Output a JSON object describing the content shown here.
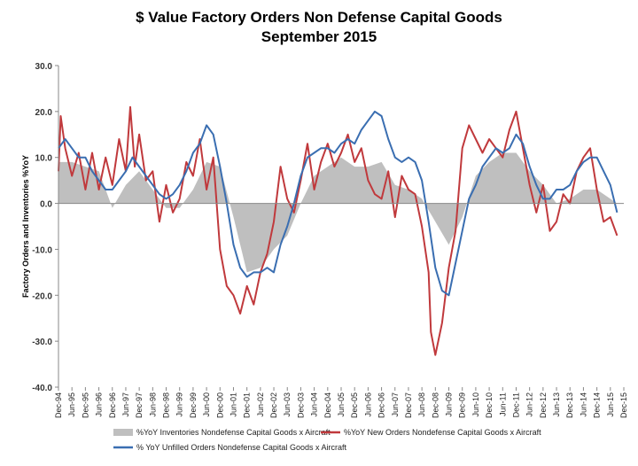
{
  "chart_data": {
    "type": "line",
    "title": "$ Value Factory Orders Non Defense Capital Goods",
    "subtitle": "September 2015",
    "xlabel": "",
    "ylabel": "Factory Orders and Inventories %YoY",
    "ylim": [
      -40,
      30
    ],
    "yticks": [
      "30.0",
      "20.0",
      "10.0",
      "0.0",
      "-10.0",
      "-20.0",
      "-30.0",
      "-40.0"
    ],
    "xrange": [
      "1994-12",
      "2015-12"
    ],
    "xtick_labels": [
      "Dec-94",
      "Jun-95",
      "Dec-95",
      "Jun-96",
      "Dec-96",
      "Jun-97",
      "Dec-97",
      "Jun-98",
      "Dec-98",
      "Jun-99",
      "Dec-99",
      "Jun-00",
      "Dec-00",
      "Jun-01",
      "Dec-01",
      "Jun-02",
      "Dec-02",
      "Jun-03",
      "Dec-03",
      "Jun-04",
      "Dec-04",
      "Jun-05",
      "Dec-05",
      "Jun-06",
      "Dec-06",
      "Jun-07",
      "Dec-07",
      "Jun-08",
      "Dec-08",
      "Jun-09",
      "Dec-09",
      "Jun-10",
      "Dec-10",
      "Jun-11",
      "Dec-11",
      "Jun-12",
      "Dec-12",
      "Jun-13",
      "Dec-13",
      "Jun-14",
      "Dec-14",
      "Jun-15",
      "Dec-15"
    ],
    "grid": false,
    "legend_position": "bottom",
    "series": [
      {
        "name": "%YoY Inventories Nondefense Capital Goods x Aircraft",
        "style": "area",
        "color": "#bfbfbf",
        "points": [
          [
            "1994-12",
            9
          ],
          [
            "1995-06",
            9
          ],
          [
            "1995-12",
            8
          ],
          [
            "1996-06",
            7
          ],
          [
            "1996-12",
            -1
          ],
          [
            "1997-06",
            4
          ],
          [
            "1997-12",
            7
          ],
          [
            "1998-06",
            3
          ],
          [
            "1998-12",
            -1
          ],
          [
            "1999-06",
            -1
          ],
          [
            "1999-12",
            3
          ],
          [
            "2000-06",
            9
          ],
          [
            "2000-12",
            8
          ],
          [
            "2001-06",
            -3
          ],
          [
            "2001-12",
            -15
          ],
          [
            "2002-06",
            -14
          ],
          [
            "2002-12",
            -10
          ],
          [
            "2003-06",
            -7
          ],
          [
            "2003-12",
            0
          ],
          [
            "2004-06",
            6
          ],
          [
            "2004-12",
            8
          ],
          [
            "2005-06",
            10
          ],
          [
            "2005-12",
            8
          ],
          [
            "2006-06",
            8
          ],
          [
            "2006-12",
            9
          ],
          [
            "2007-06",
            4
          ],
          [
            "2007-12",
            3
          ],
          [
            "2008-06",
            1
          ],
          [
            "2008-12",
            -4
          ],
          [
            "2009-06",
            -9
          ],
          [
            "2009-12",
            -3
          ],
          [
            "2010-06",
            6
          ],
          [
            "2010-12",
            9
          ],
          [
            "2011-06",
            11
          ],
          [
            "2011-12",
            11
          ],
          [
            "2012-06",
            7
          ],
          [
            "2012-12",
            4
          ],
          [
            "2013-06",
            0
          ],
          [
            "2013-12",
            1
          ],
          [
            "2014-06",
            3
          ],
          [
            "2014-12",
            3
          ],
          [
            "2015-06",
            1
          ],
          [
            "2015-09",
            0
          ]
        ]
      },
      {
        "name": "%YoY New Orders Nondefense Capital Goods x Aircraft",
        "style": "line",
        "color": "#c0393c",
        "points": [
          [
            "1994-12",
            7
          ],
          [
            "1995-01",
            19
          ],
          [
            "1995-03",
            12
          ],
          [
            "1995-06",
            6
          ],
          [
            "1995-09",
            11
          ],
          [
            "1995-12",
            3
          ],
          [
            "1996-03",
            11
          ],
          [
            "1996-06",
            3
          ],
          [
            "1996-09",
            10
          ],
          [
            "1996-12",
            4
          ],
          [
            "1997-03",
            14
          ],
          [
            "1997-06",
            7
          ],
          [
            "1997-08",
            21
          ],
          [
            "1997-10",
            8
          ],
          [
            "1997-12",
            15
          ],
          [
            "1998-03",
            5
          ],
          [
            "1998-06",
            7
          ],
          [
            "1998-09",
            -4
          ],
          [
            "1998-12",
            4
          ],
          [
            "1999-03",
            -2
          ],
          [
            "1999-06",
            1
          ],
          [
            "1999-09",
            9
          ],
          [
            "1999-12",
            6
          ],
          [
            "2000-03",
            14
          ],
          [
            "2000-06",
            3
          ],
          [
            "2000-09",
            10
          ],
          [
            "2000-12",
            -10
          ],
          [
            "2001-03",
            -18
          ],
          [
            "2001-06",
            -20
          ],
          [
            "2001-09",
            -24
          ],
          [
            "2001-12",
            -18
          ],
          [
            "2002-03",
            -22
          ],
          [
            "2002-06",
            -15
          ],
          [
            "2002-09",
            -11
          ],
          [
            "2002-12",
            -4
          ],
          [
            "2003-03",
            8
          ],
          [
            "2003-06",
            1
          ],
          [
            "2003-09",
            -2
          ],
          [
            "2003-12",
            5
          ],
          [
            "2004-03",
            13
          ],
          [
            "2004-06",
            3
          ],
          [
            "2004-09",
            9
          ],
          [
            "2004-12",
            13
          ],
          [
            "2005-03",
            8
          ],
          [
            "2005-06",
            11
          ],
          [
            "2005-09",
            15
          ],
          [
            "2005-12",
            9
          ],
          [
            "2006-03",
            12
          ],
          [
            "2006-06",
            5
          ],
          [
            "2006-09",
            2
          ],
          [
            "2006-12",
            1
          ],
          [
            "2007-03",
            7
          ],
          [
            "2007-06",
            -3
          ],
          [
            "2007-09",
            6
          ],
          [
            "2007-12",
            3
          ],
          [
            "2008-03",
            2
          ],
          [
            "2008-06",
            -5
          ],
          [
            "2008-09",
            -15
          ],
          [
            "2008-10",
            -28
          ],
          [
            "2008-12",
            -33
          ],
          [
            "2009-03",
            -26
          ],
          [
            "2009-06",
            -14
          ],
          [
            "2009-09",
            -6
          ],
          [
            "2009-12",
            12
          ],
          [
            "2010-03",
            17
          ],
          [
            "2010-06",
            14
          ],
          [
            "2010-09",
            11
          ],
          [
            "2010-12",
            14
          ],
          [
            "2011-03",
            12
          ],
          [
            "2011-06",
            10
          ],
          [
            "2011-09",
            16
          ],
          [
            "2011-12",
            20
          ],
          [
            "2012-03",
            12
          ],
          [
            "2012-06",
            4
          ],
          [
            "2012-09",
            -2
          ],
          [
            "2012-12",
            4
          ],
          [
            "2013-03",
            -6
          ],
          [
            "2013-06",
            -4
          ],
          [
            "2013-09",
            2
          ],
          [
            "2013-12",
            0
          ],
          [
            "2014-03",
            7
          ],
          [
            "2014-06",
            10
          ],
          [
            "2014-09",
            12
          ],
          [
            "2014-12",
            3
          ],
          [
            "2015-03",
            -4
          ],
          [
            "2015-06",
            -3
          ],
          [
            "2015-09",
            -7
          ]
        ]
      },
      {
        "name": "% YoY Unfilled Orders Nondefense Capital Goods x Aircraft",
        "style": "line",
        "color": "#3a6eb1",
        "points": [
          [
            "1994-12",
            12
          ],
          [
            "1995-03",
            14
          ],
          [
            "1995-06",
            12
          ],
          [
            "1995-09",
            10
          ],
          [
            "1995-12",
            10
          ],
          [
            "1996-03",
            7
          ],
          [
            "1996-06",
            5
          ],
          [
            "1996-09",
            3
          ],
          [
            "1996-12",
            3
          ],
          [
            "1997-03",
            5
          ],
          [
            "1997-06",
            7
          ],
          [
            "1997-09",
            10
          ],
          [
            "1997-12",
            8
          ],
          [
            "1998-03",
            6
          ],
          [
            "1998-06",
            4
          ],
          [
            "1998-09",
            2
          ],
          [
            "1998-12",
            1
          ],
          [
            "1999-03",
            2
          ],
          [
            "1999-06",
            4
          ],
          [
            "1999-09",
            7
          ],
          [
            "1999-12",
            11
          ],
          [
            "2000-03",
            13
          ],
          [
            "2000-06",
            17
          ],
          [
            "2000-09",
            15
          ],
          [
            "2000-12",
            8
          ],
          [
            "2001-03",
            0
          ],
          [
            "2001-06",
            -9
          ],
          [
            "2001-09",
            -14
          ],
          [
            "2001-12",
            -16
          ],
          [
            "2002-03",
            -15
          ],
          [
            "2002-06",
            -15
          ],
          [
            "2002-09",
            -14
          ],
          [
            "2002-12",
            -15
          ],
          [
            "2003-03",
            -9
          ],
          [
            "2003-06",
            -5
          ],
          [
            "2003-09",
            0
          ],
          [
            "2003-12",
            6
          ],
          [
            "2004-03",
            10
          ],
          [
            "2004-06",
            11
          ],
          [
            "2004-09",
            12
          ],
          [
            "2004-12",
            12
          ],
          [
            "2005-03",
            11
          ],
          [
            "2005-06",
            13
          ],
          [
            "2005-09",
            14
          ],
          [
            "2005-12",
            13
          ],
          [
            "2006-03",
            16
          ],
          [
            "2006-06",
            18
          ],
          [
            "2006-09",
            20
          ],
          [
            "2006-12",
            19
          ],
          [
            "2007-03",
            14
          ],
          [
            "2007-06",
            10
          ],
          [
            "2007-09",
            9
          ],
          [
            "2007-12",
            10
          ],
          [
            "2008-03",
            9
          ],
          [
            "2008-06",
            5
          ],
          [
            "2008-09",
            -4
          ],
          [
            "2008-12",
            -14
          ],
          [
            "2009-03",
            -19
          ],
          [
            "2009-06",
            -20
          ],
          [
            "2009-09",
            -13
          ],
          [
            "2009-12",
            -6
          ],
          [
            "2010-03",
            1
          ],
          [
            "2010-06",
            4
          ],
          [
            "2010-09",
            8
          ],
          [
            "2010-12",
            10
          ],
          [
            "2011-03",
            12
          ],
          [
            "2011-06",
            11
          ],
          [
            "2011-09",
            12
          ],
          [
            "2011-12",
            15
          ],
          [
            "2012-03",
            13
          ],
          [
            "2012-06",
            8
          ],
          [
            "2012-09",
            4
          ],
          [
            "2012-12",
            1
          ],
          [
            "2013-03",
            1
          ],
          [
            "2013-06",
            3
          ],
          [
            "2013-09",
            3
          ],
          [
            "2013-12",
            4
          ],
          [
            "2014-03",
            7
          ],
          [
            "2014-06",
            9
          ],
          [
            "2014-09",
            10
          ],
          [
            "2014-12",
            10
          ],
          [
            "2015-03",
            7
          ],
          [
            "2015-06",
            4
          ],
          [
            "2015-09",
            -2
          ]
        ]
      }
    ]
  }
}
